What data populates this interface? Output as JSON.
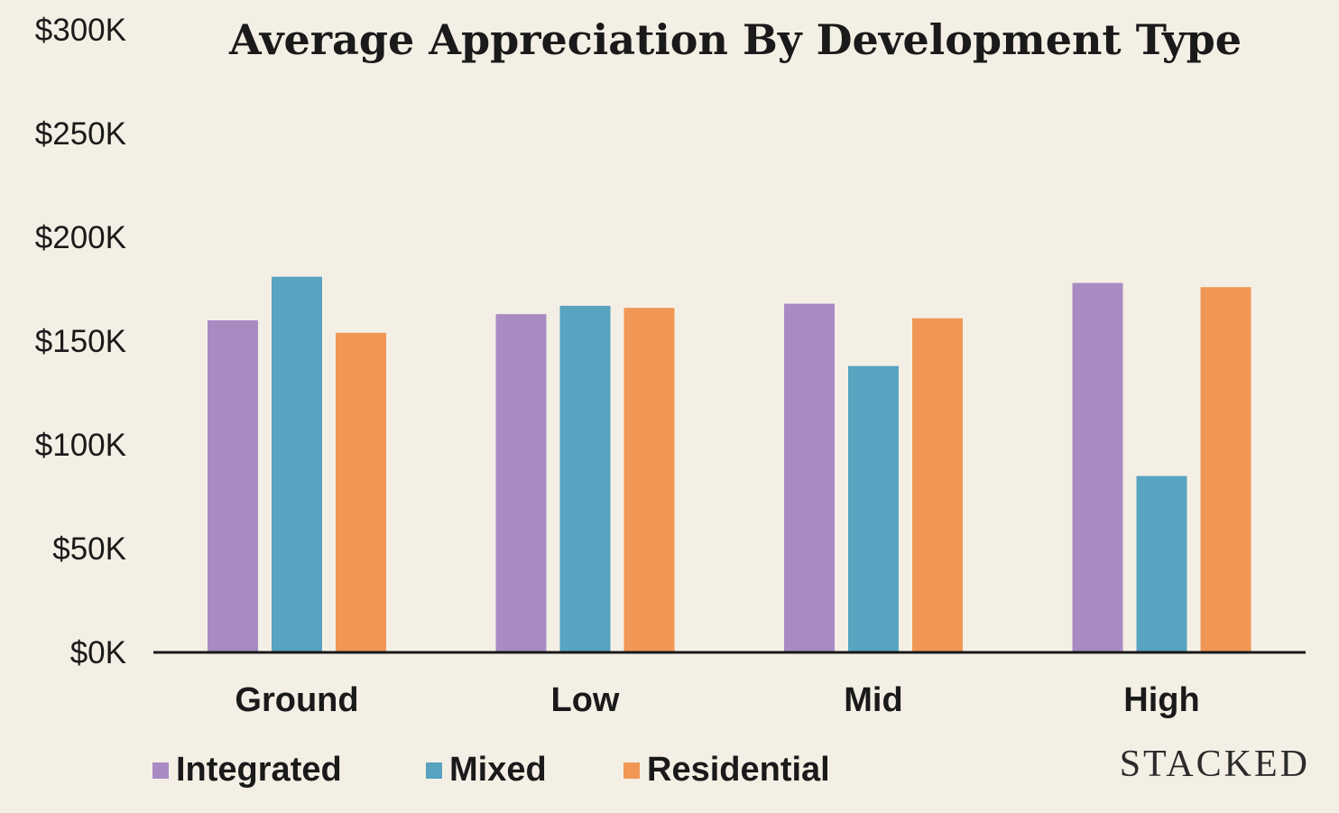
{
  "brand": {
    "text": "STACKED"
  },
  "chart_data": {
    "type": "bar",
    "title": "Average Appreciation By Development Type",
    "xlabel": "",
    "ylabel": "",
    "categories": [
      "Ground",
      "Low",
      "Mid",
      "High"
    ],
    "series": [
      {
        "name": "Integrated",
        "color": "#a98bc4",
        "values": [
          160000,
          163000,
          168000,
          178000
        ]
      },
      {
        "name": "Mixed",
        "color": "#57a3c0",
        "values": [
          181000,
          167000,
          138000,
          85000
        ]
      },
      {
        "name": "Residential",
        "color": "#f19755",
        "values": [
          154000,
          166000,
          161000,
          176000
        ]
      }
    ],
    "ylim": [
      0,
      300000
    ],
    "yticks": [
      {
        "value": 0,
        "label": "$0K"
      },
      {
        "value": 50000,
        "label": "$50K"
      },
      {
        "value": 100000,
        "label": "$100K"
      },
      {
        "value": 150000,
        "label": "$150K"
      },
      {
        "value": 200000,
        "label": "$200K"
      },
      {
        "value": 250000,
        "label": "$250K"
      },
      {
        "value": 300000,
        "label": "$300K"
      }
    ],
    "grid": false,
    "legend_position": "bottom-left"
  }
}
